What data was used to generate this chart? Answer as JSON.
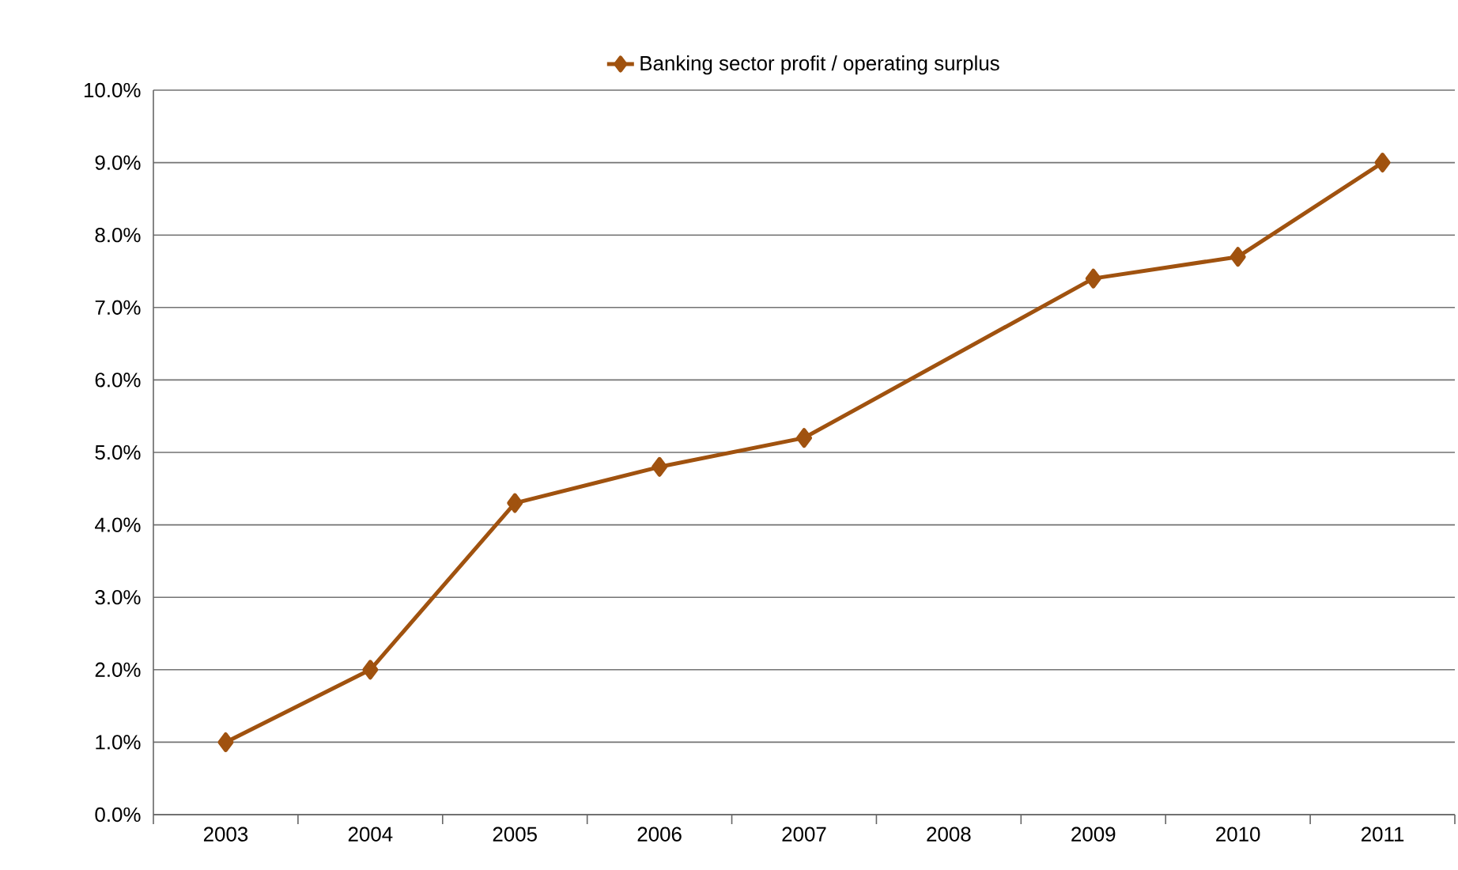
{
  "chart_data": {
    "type": "line",
    "categories": [
      "2003",
      "2004",
      "2005",
      "2006",
      "2007",
      "2008",
      "2009",
      "2010",
      "2011"
    ],
    "series": [
      {
        "name": "Banking sector profit / operating surplus",
        "color": "#a0520f",
        "values": [
          1.0,
          2.0,
          4.3,
          4.8,
          5.2,
          null,
          7.4,
          7.7,
          9.0
        ]
      }
    ],
    "ylim": [
      0,
      10
    ],
    "yticks": [
      {
        "value": 0,
        "label": "0.0%"
      },
      {
        "value": 1,
        "label": "1.0%"
      },
      {
        "value": 2,
        "label": "2.0%"
      },
      {
        "value": 3,
        "label": "3.0%"
      },
      {
        "value": 4,
        "label": "4.0%"
      },
      {
        "value": 5,
        "label": "5.0%"
      },
      {
        "value": 6,
        "label": "6.0%"
      },
      {
        "value": 7,
        "label": "7.0%"
      },
      {
        "value": 8,
        "label": "8.0%"
      },
      {
        "value": 9,
        "label": "9.0%"
      },
      {
        "value": 10,
        "label": "10.0%"
      }
    ],
    "grid": "y",
    "legend": "top",
    "marker": "diamond",
    "line_style": "solid"
  }
}
